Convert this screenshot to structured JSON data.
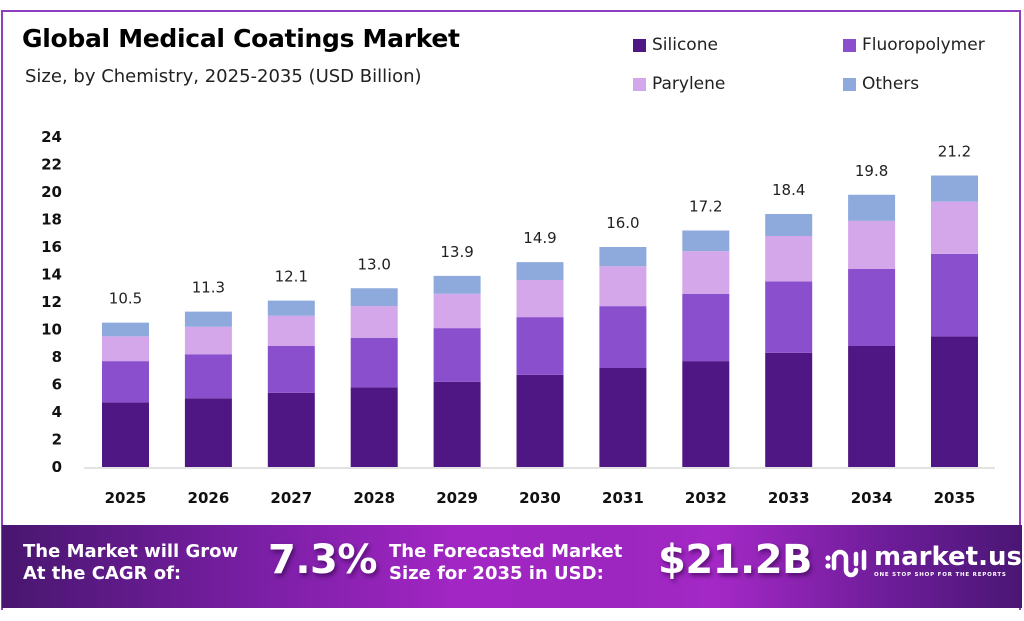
{
  "header": {
    "title": "Global Medical Coatings Market",
    "subtitle": "Size, by Chemistry, 2025-2035 (USD Billion)"
  },
  "legend": [
    {
      "label": "Silicone",
      "color": "#4f1783"
    },
    {
      "label": "Fluoropolymer",
      "color": "#8a4fcc"
    },
    {
      "label": "Parylene",
      "color": "#d4a6ea"
    },
    {
      "label": "Others",
      "color": "#8eaadc"
    }
  ],
  "chart_data": {
    "type": "bar",
    "stacked": true,
    "title": "Global Medical Coatings Market",
    "subtitle": "Size, by Chemistry, 2025-2035 (USD Billion)",
    "xlabel": "",
    "ylabel": "",
    "ylim": [
      0,
      24
    ],
    "yticks": [
      0,
      2,
      4,
      6,
      8,
      10,
      12,
      14,
      16,
      18,
      20,
      22,
      24
    ],
    "grid": false,
    "legend_position": "top-right",
    "categories": [
      "2025",
      "2026",
      "2027",
      "2028",
      "2029",
      "2030",
      "2031",
      "2032",
      "2033",
      "2034",
      "2035"
    ],
    "series": [
      {
        "name": "Silicone",
        "color": "#4f1783",
        "values": [
          4.7,
          5.0,
          5.4,
          5.8,
          6.2,
          6.7,
          7.2,
          7.7,
          8.3,
          8.8,
          9.5
        ]
      },
      {
        "name": "Fluoropolymer",
        "color": "#8a4fcc",
        "values": [
          3.0,
          3.2,
          3.4,
          3.6,
          3.9,
          4.2,
          4.5,
          4.9,
          5.2,
          5.6,
          6.0
        ]
      },
      {
        "name": "Parylene",
        "color": "#d4a6ea",
        "values": [
          1.8,
          2.0,
          2.2,
          2.3,
          2.5,
          2.7,
          2.9,
          3.1,
          3.3,
          3.5,
          3.8
        ]
      },
      {
        "name": "Others",
        "color": "#8eaadc",
        "values": [
          1.0,
          1.1,
          1.1,
          1.3,
          1.3,
          1.3,
          1.4,
          1.5,
          1.6,
          1.9,
          1.9
        ]
      }
    ],
    "totals": [
      10.5,
      11.3,
      12.1,
      13.0,
      13.9,
      14.9,
      16.0,
      17.2,
      18.4,
      19.8,
      21.2
    ],
    "total_labels": [
      "10.5",
      "11.3",
      "12.1",
      "13.0",
      "13.9",
      "14.9",
      "16.0",
      "17.2",
      "18.4",
      "19.8",
      "21.2"
    ]
  },
  "banner": {
    "cagr_text_line1": "The Market will Grow",
    "cagr_text_line2": "At the CAGR of:",
    "cagr_value": "7.3%",
    "forecast_text_line1": "The Forecasted Market",
    "forecast_text_line2": "Size for 2035 in USD:",
    "forecast_value": "$21.2B",
    "logo_name": "market.us",
    "logo_tagline": "ONE STOP SHOP FOR THE REPORTS"
  }
}
